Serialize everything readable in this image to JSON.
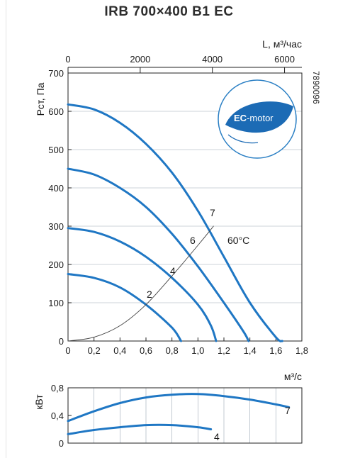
{
  "title": "IRB 700×400 B1 EC",
  "product_code": "7890096",
  "badge": {
    "text_ec": "EC",
    "text_motor": "-motor"
  },
  "chart_data": [
    {
      "type": "line",
      "title": "IRB 700×400 B1 EC",
      "xlabel": "м³/с",
      "x2label": "L, м³/час",
      "ylabel": "Рст, Па",
      "xlim": [
        0,
        1.8
      ],
      "ylim": [
        0,
        700
      ],
      "x2lim": [
        0,
        6480
      ],
      "x_ticks": [
        "0",
        "0,2",
        "0,4",
        "0,6",
        "0,8",
        "1,0",
        "1,2",
        "1,4",
        "1,6",
        "1,8"
      ],
      "x2_ticks": [
        "0",
        "2000",
        "4000",
        "6000"
      ],
      "y_ticks": [
        "0",
        "100",
        "200",
        "300",
        "400",
        "500",
        "600",
        "700"
      ],
      "series": [
        {
          "name": "7",
          "x": [
            0,
            0.2,
            0.4,
            0.6,
            0.8,
            1.0,
            1.2,
            1.4,
            1.6,
            1.65
          ],
          "y": [
            618,
            605,
            570,
            515,
            440,
            340,
            220,
            100,
            10,
            0
          ]
        },
        {
          "name": "6",
          "x": [
            0,
            0.2,
            0.4,
            0.6,
            0.8,
            1.0,
            1.2,
            1.35,
            1.39
          ],
          "y": [
            450,
            435,
            400,
            350,
            280,
            195,
            100,
            25,
            0
          ]
        },
        {
          "name": "4",
          "x": [
            0,
            0.2,
            0.4,
            0.6,
            0.8,
            1.0,
            1.1,
            1.14
          ],
          "y": [
            295,
            285,
            260,
            220,
            165,
            95,
            40,
            0
          ]
        },
        {
          "name": "2",
          "x": [
            0,
            0.2,
            0.4,
            0.6,
            0.8,
            0.87
          ],
          "y": [
            175,
            165,
            140,
            95,
            35,
            0
          ]
        },
        {
          "name": "",
          "x": [
            0,
            0.2,
            0.4,
            0.6,
            0.8,
            1.0,
            1.12
          ],
          "y": [
            0,
            10,
            40,
            95,
            170,
            250,
            300
          ]
        }
      ],
      "curve_labels": [
        "7",
        "6",
        "4",
        "2"
      ],
      "annotations": [
        "60°C"
      ]
    },
    {
      "type": "line",
      "xlabel": "м³/с",
      "ylabel": "кВт",
      "xlim": [
        0,
        1.8
      ],
      "ylim": [
        0,
        0.8
      ],
      "y_ticks": [
        "0",
        "0,4",
        "0,8"
      ],
      "series": [
        {
          "name": "7",
          "x": [
            0,
            0.2,
            0.4,
            0.6,
            0.8,
            1.0,
            1.2,
            1.4,
            1.6,
            1.7
          ],
          "y": [
            0.32,
            0.46,
            0.58,
            0.66,
            0.7,
            0.71,
            0.68,
            0.63,
            0.56,
            0.52
          ]
        },
        {
          "name": "4",
          "x": [
            0,
            0.2,
            0.4,
            0.6,
            0.8,
            1.0,
            1.1
          ],
          "y": [
            0.13,
            0.19,
            0.23,
            0.26,
            0.26,
            0.23,
            0.2
          ]
        }
      ]
    }
  ]
}
